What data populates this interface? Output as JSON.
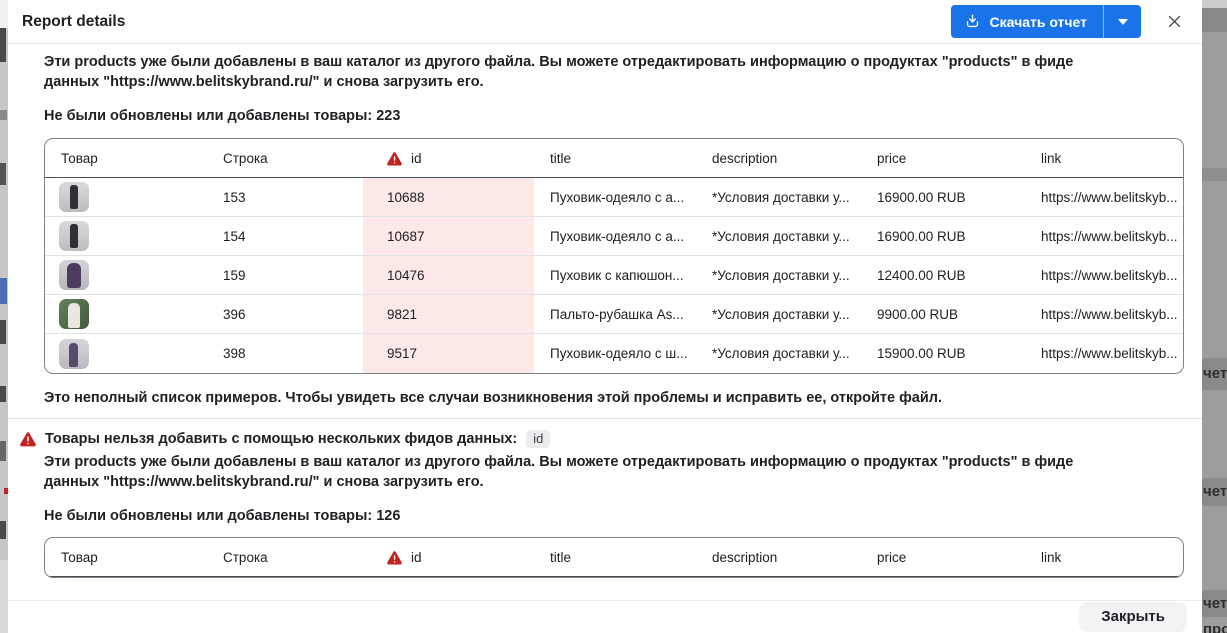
{
  "modal": {
    "title": "Report details",
    "download_button_label": "Скачать отчет",
    "close_button_label": "Закрыть"
  },
  "section1": {
    "paragraph": "Эти products уже были добавлены в ваш каталог из другого файла. Вы можете отредактировать информацию о продуктах \"products\" в фиде данных \"https://www.belitskybrand.ru/\" и снова загрузить его.",
    "count_label": "Не были обновлены или добавлены товары: 223",
    "note": "Это неполный список примеров. Чтобы увидеть все случаи возникновения этой проблемы и исправить ее, откройте файл."
  },
  "section2": {
    "heading": "Товары нельзя добавить с помощью нескольких фидов данных:",
    "badge": "id",
    "paragraph": "Эти products уже были добавлены в ваш каталог из другого файла. Вы можете отредактировать информацию о продуктах \"products\" в фиде данных \"https://www.belitskybrand.ru/\" и снова загрузить его.",
    "count_label": "Не были обновлены или добавлены товары: 126"
  },
  "table": {
    "headers": [
      "Товар",
      "Строка",
      "id",
      "title",
      "description",
      "price",
      "link"
    ],
    "error_header": "id",
    "rows": [
      {
        "thumb": "dark-coat",
        "row": "153",
        "id": "10688",
        "title": "Пуховик-одеяло с а...",
        "description": "*Условия доставки у...",
        "price": "16900.00 RUB",
        "link": "https://www.belitskyb..."
      },
      {
        "thumb": "dark-coat",
        "row": "154",
        "id": "10687",
        "title": "Пуховик-одеяло с а...",
        "description": "*Условия доставки у...",
        "price": "16900.00 RUB",
        "link": "https://www.belitskyb..."
      },
      {
        "thumb": "purple-coat",
        "row": "159",
        "id": "10476",
        "title": "Пуховик с капюшон...",
        "description": "*Условия доставки у...",
        "price": "12400.00 RUB",
        "link": "https://www.belitskyb..."
      },
      {
        "thumb": "white-coat",
        "row": "396",
        "id": "9821",
        "title": "Пальто-рубашка As...",
        "description": "*Условия доставки у...",
        "price": "9900.00 RUB",
        "link": "https://www.belitskyb..."
      },
      {
        "thumb": "purple-dress",
        "row": "398",
        "id": "9517",
        "title": "Пуховик-одеяло с ш...",
        "description": "*Условия доставки у...",
        "price": "15900.00 RUB",
        "link": "https://www.belitskyb..."
      }
    ]
  },
  "backdrop": {
    "fragments": [
      "чет",
      "чет",
      "чет",
      "про"
    ]
  },
  "colors": {
    "accent_blue": "#1a73e8",
    "error_red": "#c5221f",
    "error_cell_bg": "#fce8e6",
    "badge_bg": "#ececee"
  }
}
